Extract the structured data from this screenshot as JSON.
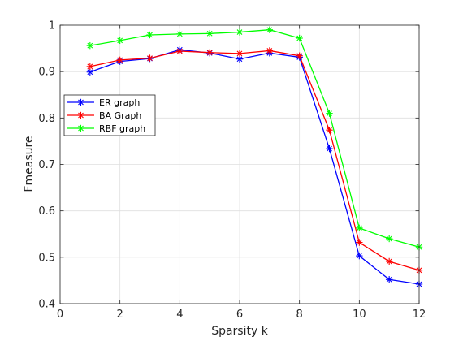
{
  "chart_data": {
    "type": "line",
    "xlabel": "Sparsity k",
    "ylabel": "Fmeasure",
    "xlim": [
      0,
      12
    ],
    "ylim": [
      0.4,
      1.0
    ],
    "xticks": [
      0,
      2,
      4,
      6,
      8,
      10,
      12
    ],
    "yticks": [
      0.4,
      0.5,
      0.6,
      0.7,
      0.8,
      0.9,
      1.0
    ],
    "ytick_labels": [
      "0.4",
      "0.5",
      "0.6",
      "0.7",
      "0.8",
      "0.9",
      "1"
    ],
    "grid": true,
    "legend_position": "left",
    "x": [
      1,
      2,
      3,
      4,
      5,
      6,
      7,
      8,
      9,
      10,
      11,
      12
    ],
    "series": [
      {
        "name": "ER graph",
        "color": "#0000ff",
        "marker": "asterisk",
        "values": [
          0.899,
          0.922,
          0.928,
          0.947,
          0.94,
          0.927,
          0.94,
          0.931,
          0.734,
          0.503,
          0.452,
          0.442
        ]
      },
      {
        "name": "BA Graph",
        "color": "#ff0000",
        "marker": "asterisk",
        "values": [
          0.911,
          0.925,
          0.929,
          0.944,
          0.941,
          0.939,
          0.945,
          0.934,
          0.774,
          0.532,
          0.491,
          0.472
        ]
      },
      {
        "name": "RBF graph",
        "color": "#00ff00",
        "marker": "asterisk",
        "values": [
          0.956,
          0.967,
          0.979,
          0.981,
          0.982,
          0.985,
          0.99,
          0.972,
          0.81,
          0.563,
          0.54,
          0.522
        ]
      }
    ]
  }
}
